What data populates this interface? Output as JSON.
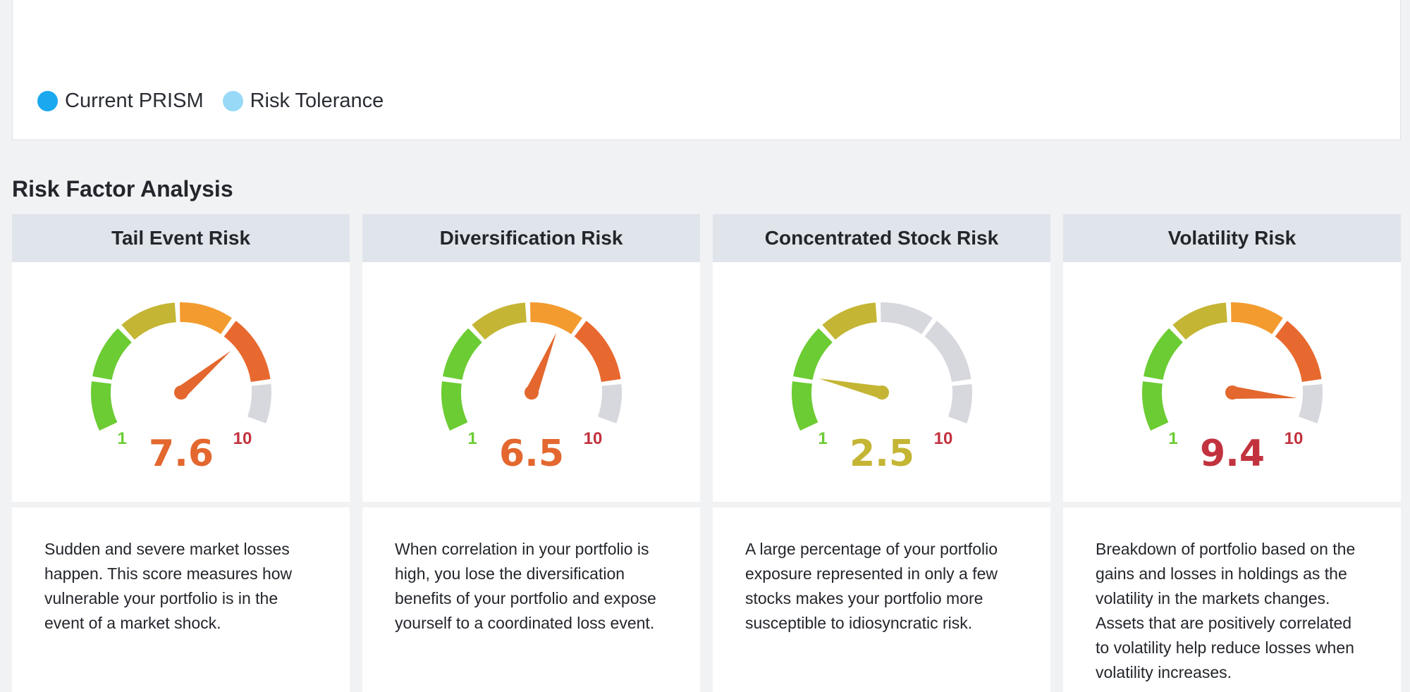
{
  "legend": {
    "items": [
      {
        "label": "Current PRISM",
        "color": "#1aa8ef"
      },
      {
        "label": "Risk Tolerance",
        "color": "#98d9f7"
      }
    ]
  },
  "section_title": "Risk Factor Analysis",
  "gauge_scale": {
    "min": 1,
    "max": 10,
    "min_label": "1",
    "max_label": "10"
  },
  "colors": {
    "green": "#6ccc33",
    "olive": "#c4b534",
    "orange": "#f39b2f",
    "dark_orange": "#e8692f",
    "inactive": "#d7d8dd",
    "red": "#c2323e"
  },
  "cards": [
    {
      "title": "Tail Event Risk",
      "score": 7.6,
      "score_label": "7.6",
      "score_color": "#e3672e",
      "needle_color": "#e3672e",
      "active_segments": 5,
      "description": "Sudden and severe market losses happen. This score measures how vulnerable your portfolio is in the event of a market shock."
    },
    {
      "title": "Diversification Risk",
      "score": 6.5,
      "score_label": "6.5",
      "score_color": "#e3672e",
      "needle_color": "#e3672e",
      "active_segments": 5,
      "description": "When correlation in your portfolio is high, you lose the diversification benefits of your portfolio and expose yourself to a coordinated loss event."
    },
    {
      "title": "Concentrated Stock Risk",
      "score": 2.5,
      "score_label": "2.5",
      "score_color": "#c4b534",
      "needle_color": "#c4b534",
      "active_segments": 3,
      "description": "A large percentage of your portfolio exposure represented in only a few stocks makes your portfolio more susceptible to idiosyncratic risk."
    },
    {
      "title": "Volatility Risk",
      "score": 9.4,
      "score_label": "9.4",
      "score_color": "#c2323e",
      "needle_color": "#e3672e",
      "active_segments": 5,
      "description": "Breakdown of portfolio based on the gains and losses in holdings as the volatility in the markets changes. Assets that are positively correlated to volatility help reduce losses when volatility increases."
    }
  ]
}
